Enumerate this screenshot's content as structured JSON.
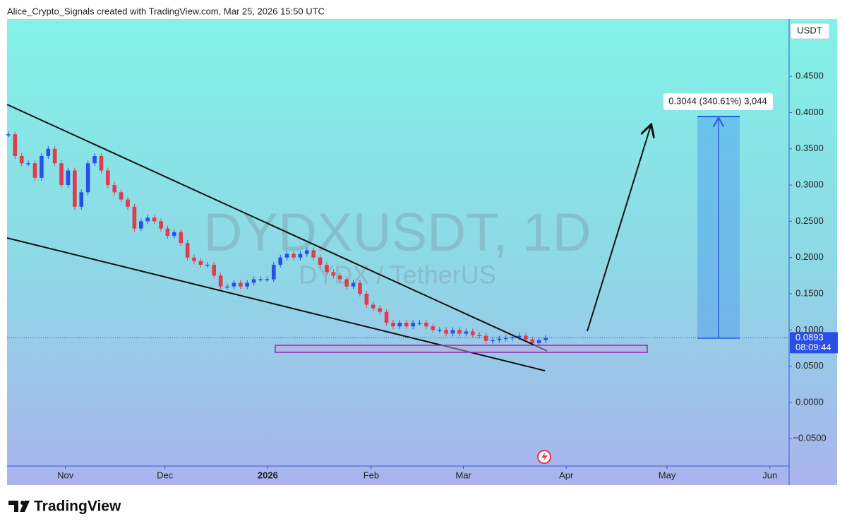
{
  "header": "Alice_Crypto_Signals created with TradingView.com, Mar 25, 2026 15:50 UTC",
  "brand": "TradingView",
  "chart_data": {
    "type": "candlestick",
    "watermark": "DYDXUSDT, 1D",
    "watermark_subtitle": "DYDX / TetherUS",
    "currency": "USDT",
    "up_color": "#2a4fe6",
    "down_color": "#e23a4e",
    "values": [
      0.37,
      0.34,
      0.33,
      0.33,
      0.31,
      0.34,
      0.35,
      0.33,
      0.3,
      0.32,
      0.27,
      0.29,
      0.33,
      0.34,
      0.32,
      0.3,
      0.29,
      0.28,
      0.27,
      0.24,
      0.25,
      0.255,
      0.25,
      0.24,
      0.23,
      0.235,
      0.22,
      0.2,
      0.195,
      0.19,
      0.19,
      0.175,
      0.16,
      0.16,
      0.165,
      0.16,
      0.165,
      0.17,
      0.17,
      0.17,
      0.19,
      0.2,
      0.205,
      0.2,
      0.205,
      0.21,
      0.2,
      0.19,
      0.18,
      0.175,
      0.17,
      0.16,
      0.165,
      0.15,
      0.135,
      0.13,
      0.125,
      0.11,
      0.105,
      0.11,
      0.105,
      0.11,
      0.11,
      0.105,
      0.1,
      0.1,
      0.095,
      0.1,
      0.095,
      0.098,
      0.093,
      0.092,
      0.085,
      0.086,
      0.088,
      0.089,
      0.09,
      0.092,
      0.087,
      0.082,
      0.086,
      0.0893
    ],
    "last_price": 0.0893,
    "countdown": "08:09:44",
    "measure_label": "0.3044 (340.61%) 3,044",
    "xlim": [
      -0.2,
      117.7
    ],
    "xticks": [
      {
        "value": 8.6,
        "label": "Nov"
      },
      {
        "value": 23.6,
        "label": "Dec"
      },
      {
        "value": 39.1,
        "label": "2026"
      },
      {
        "value": 54.7,
        "label": "Feb"
      },
      {
        "value": 68.6,
        "label": "Mar"
      },
      {
        "value": 84.1,
        "label": "Apr"
      },
      {
        "value": 99.3,
        "label": "May"
      },
      {
        "value": 114.8,
        "label": "Jun"
      }
    ],
    "ylim": [
      -0.0877,
      0.529
    ],
    "yticks": [
      {
        "value": -0.05,
        "label": "−0.0500"
      },
      {
        "value": 0,
        "label": "0.0000"
      },
      {
        "value": 0.05,
        "label": "0.0500"
      },
      {
        "value": 0.1,
        "label": "0.1000"
      },
      {
        "value": 0.15,
        "label": "0.1500"
      },
      {
        "value": 0.2,
        "label": "0.2000"
      },
      {
        "value": 0.25,
        "label": "0.2500"
      },
      {
        "value": 0.3,
        "label": "0.3000"
      },
      {
        "value": 0.35,
        "label": "0.3500"
      },
      {
        "value": 0.4,
        "label": "0.4000"
      },
      {
        "value": 0.45,
        "label": "0.4500"
      }
    ]
  }
}
